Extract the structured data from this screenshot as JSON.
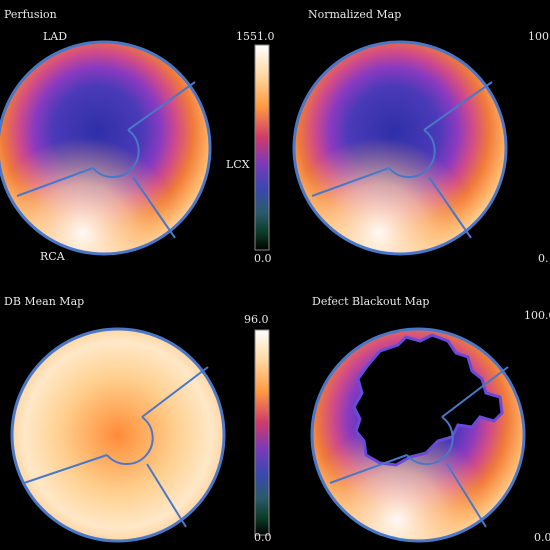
{
  "panels": {
    "perfusion": {
      "title": "Perfusion",
      "labels": {
        "lad": "LAD",
        "lcx": "LCX",
        "rca": "RCA"
      }
    },
    "normalized": {
      "title": "Normalized Map"
    },
    "db_mean": {
      "title": "DB Mean Map"
    },
    "defect": {
      "title": "Defect Blackout Map"
    }
  },
  "colorbars": {
    "perfusion": {
      "max": "1551.0",
      "min": "0.0"
    },
    "normalized": {
      "max": "100.",
      "min": "0."
    },
    "db_mean": {
      "max": "96.0",
      "min": "0.0"
    },
    "defect": {
      "max": "100.0",
      "min": "0.0"
    }
  },
  "colors": {
    "background": "#000000",
    "ring": "#4a78c8",
    "colormap": [
      "#ffffff",
      "#ffc27a",
      "#ff8a3a",
      "#c8306a",
      "#6a3ab8",
      "#3a4ab0",
      "#2a5a70",
      "#0a3a20",
      "#000000"
    ]
  }
}
